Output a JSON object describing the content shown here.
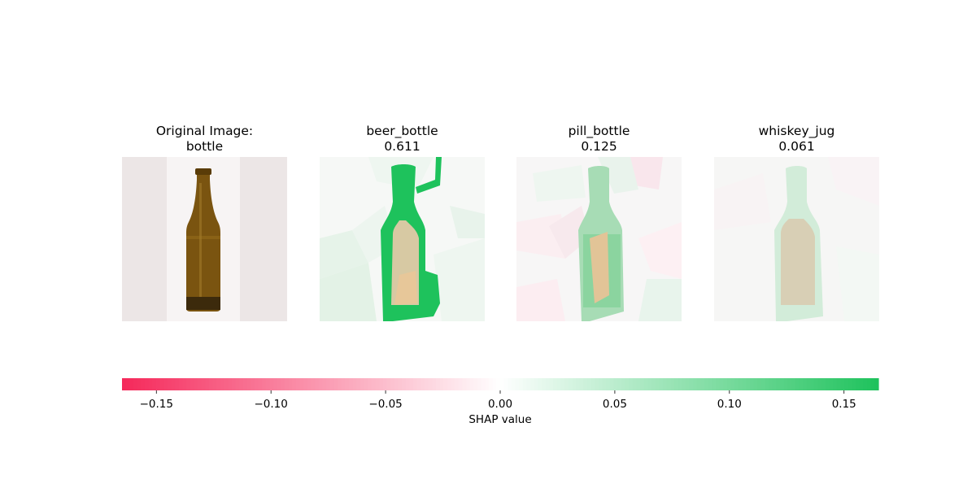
{
  "panels": [
    {
      "title_line1": "Original Image:",
      "title_line2": "bottle",
      "kind": "original"
    },
    {
      "title_line1": "beer_bottle",
      "title_line2": "0.611",
      "kind": "shap"
    },
    {
      "title_line1": "pill_bottle",
      "title_line2": "0.125",
      "kind": "shap"
    },
    {
      "title_line1": "whiskey_jug",
      "title_line2": "0.061",
      "kind": "shap"
    }
  ],
  "chart_data": {
    "type": "heatmap",
    "colorbar": {
      "label": "SHAP value",
      "range": [
        -0.165,
        0.165
      ],
      "ticks": [
        -0.15,
        -0.1,
        -0.05,
        0.0,
        0.05,
        0.1,
        0.15
      ],
      "tick_labels": [
        "−0.15",
        "−0.10",
        "−0.05",
        "0.00",
        "0.05",
        "0.10",
        "0.15"
      ],
      "negative_color": "#f5285a",
      "positive_color": "#1ec25c",
      "mid_color": "#ffffff",
      "steps": 200
    }
  }
}
